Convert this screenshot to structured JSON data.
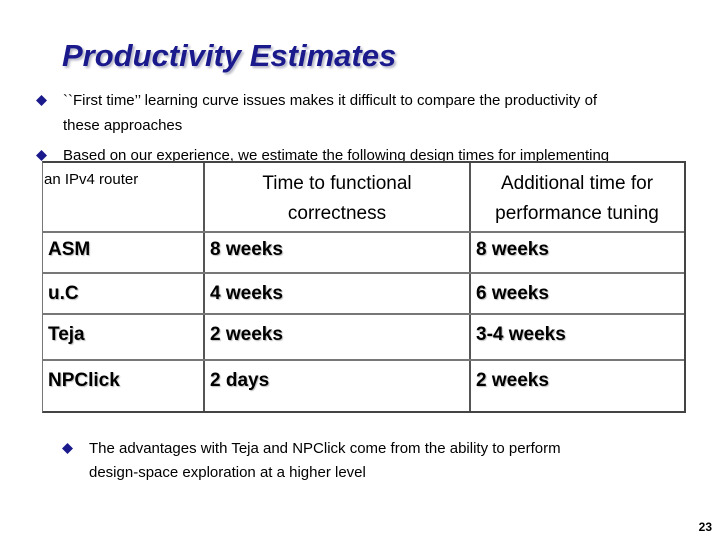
{
  "title": "Productivity Estimates",
  "bullets": [
    {
      "line1": "``First time’’ learning curve issues makes it difficult  to compare the productivity of",
      "line2": "these approaches"
    },
    {
      "line1": "Based on our experience, we estimate the following design times for implementing",
      "line2": "an IPv4 router"
    }
  ],
  "table": {
    "headers": [
      {
        "line1": "Time to functional",
        "line2": "correctness"
      },
      {
        "line1": "Additional time for",
        "line2": "performance tuning"
      }
    ],
    "rows": [
      {
        "name": "ASM",
        "functional": "8 weeks",
        "tuning": "8 weeks"
      },
      {
        "name": "u.C",
        "functional": "4 weeks",
        "tuning": "6 weeks"
      },
      {
        "name": "Teja",
        "functional": "2 weeks",
        "tuning": "3-4 weeks"
      },
      {
        "name": "NPClick",
        "functional": "2 days",
        "tuning": "2 weeks"
      }
    ]
  },
  "footer_bullet": {
    "line1": "The advantages with Teja and NPClick come from the ability to perform",
    "line2": "design-space exploration at a higher level"
  },
  "page_number": "23",
  "colors": {
    "title": "#1a1a8c",
    "bullet": "#1a1a8c"
  },
  "icons": {
    "bullet": "diamond-bullet-icon"
  }
}
